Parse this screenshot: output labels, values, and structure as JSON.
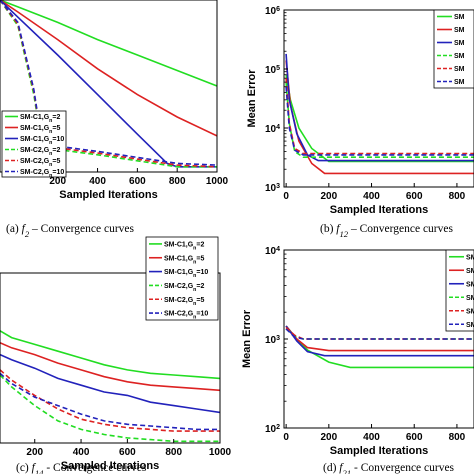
{
  "series_styles": [
    {
      "color": "#22dd22",
      "dash": "solid"
    },
    {
      "color": "#dd2222",
      "dash": "solid"
    },
    {
      "color": "#2222bb",
      "dash": "solid"
    },
    {
      "color": "#22dd22",
      "dash": "dashed"
    },
    {
      "color": "#dd2222",
      "dash": "dashed"
    },
    {
      "color": "#2222bb",
      "dash": "dashed"
    }
  ],
  "chart_data": [
    {
      "type": "line",
      "caption": {
        "prefix": "(a) ",
        "f": "f",
        "sub": "2",
        "suffix": " – Convergence curves"
      },
      "xlabel": "Sampled Iterations",
      "ylabel": "",
      "xlim": [
        -90,
        1000
      ],
      "ylim": [
        0,
        1
      ],
      "xticks": [
        200,
        400,
        600,
        800,
        1000
      ],
      "yticks": [],
      "legend": [
        "SM-C1,G_n=2",
        "SM-C1,G_n=5",
        "SM-C1,G_n=10",
        "SM-C2,G_n=2",
        "SM-C2,G_n=5",
        "SM-C2,G_n=10"
      ],
      "legend_position": "bottom-left",
      "series": [
        {
          "x": [
            -90,
            0,
            200,
            400,
            600,
            800,
            1000
          ],
          "y": [
            1.0,
            0.96,
            0.87,
            0.77,
            0.68,
            0.59,
            0.5
          ]
        },
        {
          "x": [
            -90,
            0,
            200,
            400,
            600,
            800,
            1000
          ],
          "y": [
            1.0,
            0.93,
            0.77,
            0.6,
            0.45,
            0.32,
            0.21
          ]
        },
        {
          "x": [
            -90,
            0,
            200,
            400,
            600,
            750,
            800,
            1000
          ],
          "y": [
            1.0,
            0.9,
            0.68,
            0.45,
            0.22,
            0.05,
            0.03,
            0.03
          ]
        },
        {
          "x": [
            -90,
            0,
            80,
            120,
            200,
            400,
            800,
            1000
          ],
          "y": [
            1.0,
            0.85,
            0.45,
            0.16,
            0.13,
            0.1,
            0.03,
            0.03
          ]
        },
        {
          "x": [
            -90,
            0,
            80,
            120,
            200,
            400,
            800,
            1000
          ],
          "y": [
            1.0,
            0.86,
            0.47,
            0.17,
            0.14,
            0.11,
            0.04,
            0.03
          ]
        },
        {
          "x": [
            -90,
            0,
            80,
            120,
            200,
            400,
            800,
            1000
          ],
          "y": [
            1.0,
            0.87,
            0.48,
            0.18,
            0.15,
            0.12,
            0.05,
            0.04
          ]
        }
      ]
    },
    {
      "type": "line",
      "caption": {
        "prefix": "(b) ",
        "f": "f",
        "sub": "12",
        "suffix": " – Convergence curves"
      },
      "xlabel": "Sampled Iterations",
      "ylabel": "Mean Error",
      "yscale": "log",
      "xlim": [
        -10,
        880
      ],
      "ylim": [
        1000,
        1000000
      ],
      "xticks": [
        0,
        200,
        400,
        600,
        800
      ],
      "yticks": [
        1000,
        10000,
        100000,
        1000000
      ],
      "ytick_labels": [
        "10^3",
        "10^4",
        "10^5",
        "10^6"
      ],
      "legend": [
        "SM",
        "SM",
        "SM",
        "SM",
        "SM",
        "SM"
      ],
      "legend_position": "top-right",
      "series": [
        {
          "x": [
            0,
            20,
            60,
            120,
            200,
            880
          ],
          "y": [
            80000,
            30000,
            10000,
            4500,
            2700,
            2700
          ]
        },
        {
          "x": [
            0,
            20,
            60,
            120,
            180,
            880
          ],
          "y": [
            140000,
            25000,
            6000,
            2500,
            1700,
            1700
          ]
        },
        {
          "x": [
            0,
            15,
            50,
            100,
            150,
            880
          ],
          "y": [
            180000,
            30000,
            8000,
            3500,
            2800,
            2800
          ]
        },
        {
          "x": [
            0,
            15,
            40,
            80,
            880
          ],
          "y": [
            60000,
            12000,
            4000,
            3200,
            3200
          ]
        },
        {
          "x": [
            0,
            15,
            40,
            80,
            880
          ],
          "y": [
            70000,
            12000,
            4500,
            3700,
            3700
          ]
        },
        {
          "x": [
            0,
            15,
            40,
            80,
            880
          ],
          "y": [
            50000,
            10000,
            4200,
            3500,
            3500
          ]
        }
      ]
    },
    {
      "type": "line",
      "caption": {
        "prefix": "(c) ",
        "f": "f",
        "sub": "14",
        "suffix": " - Convergence curves"
      },
      "xlabel": "Sampled Iterations",
      "ylabel": "",
      "xlim": [
        50,
        1000
      ],
      "ylim": [
        0,
        1
      ],
      "xticks": [
        200,
        400,
        600,
        800,
        1000
      ],
      "yticks": [],
      "legend": [
        "SM-C1,G_n=2",
        "SM-C1,G_n=5",
        "SM-C1,G_n=10",
        "SM-C2,G_n=2",
        "SM-C2,G_n=5",
        "SM-C2,G_n=10"
      ],
      "legend_position": "top-right",
      "series": [
        {
          "x": [
            50,
            100,
            200,
            300,
            400,
            500,
            600,
            700,
            800,
            900,
            1000
          ],
          "y": [
            0.66,
            0.62,
            0.58,
            0.54,
            0.5,
            0.46,
            0.43,
            0.41,
            0.4,
            0.39,
            0.38
          ]
        },
        {
          "x": [
            50,
            100,
            200,
            300,
            400,
            500,
            600,
            700,
            800,
            900,
            1000
          ],
          "y": [
            0.59,
            0.56,
            0.52,
            0.47,
            0.43,
            0.39,
            0.36,
            0.34,
            0.33,
            0.32,
            0.31
          ]
        },
        {
          "x": [
            50,
            100,
            200,
            300,
            400,
            500,
            600,
            700,
            800,
            900,
            1000
          ],
          "y": [
            0.52,
            0.49,
            0.44,
            0.38,
            0.34,
            0.3,
            0.28,
            0.24,
            0.22,
            0.2,
            0.18
          ]
        },
        {
          "x": [
            50,
            100,
            200,
            300,
            400,
            500,
            600,
            700,
            800,
            1000
          ],
          "y": [
            0.4,
            0.33,
            0.22,
            0.13,
            0.08,
            0.05,
            0.03,
            0.02,
            0.01,
            0.01
          ]
        },
        {
          "x": [
            50,
            100,
            200,
            300,
            400,
            500,
            600,
            700,
            800,
            900,
            1000
          ],
          "y": [
            0.43,
            0.37,
            0.28,
            0.2,
            0.14,
            0.11,
            0.09,
            0.08,
            0.07,
            0.07,
            0.07
          ]
        },
        {
          "x": [
            50,
            100,
            200,
            300,
            400,
            500,
            600,
            700,
            800,
            900,
            1000
          ],
          "y": [
            0.41,
            0.35,
            0.27,
            0.22,
            0.17,
            0.13,
            0.11,
            0.1,
            0.09,
            0.08,
            0.08
          ]
        }
      ]
    },
    {
      "type": "line",
      "caption": {
        "prefix": "(d) ",
        "f": "f",
        "sub": "21",
        "suffix": " - Convergence curves"
      },
      "xlabel": "Sampled Iterations",
      "ylabel": "Mean Error",
      "yscale": "log",
      "xlim": [
        -10,
        880
      ],
      "ylim": [
        100,
        10000
      ],
      "xticks": [
        0,
        200,
        400,
        600,
        800
      ],
      "yticks": [
        100,
        1000,
        10000
      ],
      "ytick_labels": [
        "10^2",
        "10^3",
        "10^4"
      ],
      "legend": [
        "SM",
        "SM",
        "SM",
        "SM",
        "SM",
        "SM"
      ],
      "legend_position": "top-right",
      "series": [
        {
          "x": [
            0,
            50,
            100,
            200,
            300,
            880
          ],
          "y": [
            1400,
            1000,
            750,
            550,
            480,
            480
          ]
        },
        {
          "x": [
            0,
            50,
            100,
            200,
            880
          ],
          "y": [
            1400,
            1000,
            800,
            740,
            740
          ]
        },
        {
          "x": [
            0,
            50,
            100,
            180,
            880
          ],
          "y": [
            1400,
            950,
            720,
            650,
            650
          ]
        },
        {
          "x": [
            0,
            40,
            80,
            880
          ],
          "y": [
            1300,
            1080,
            1000,
            1000
          ]
        },
        {
          "x": [
            0,
            40,
            80,
            880
          ],
          "y": [
            1350,
            1100,
            1000,
            1000
          ]
        },
        {
          "x": [
            0,
            40,
            80,
            880
          ],
          "y": [
            1300,
            1050,
            1000,
            1000
          ]
        }
      ]
    }
  ]
}
